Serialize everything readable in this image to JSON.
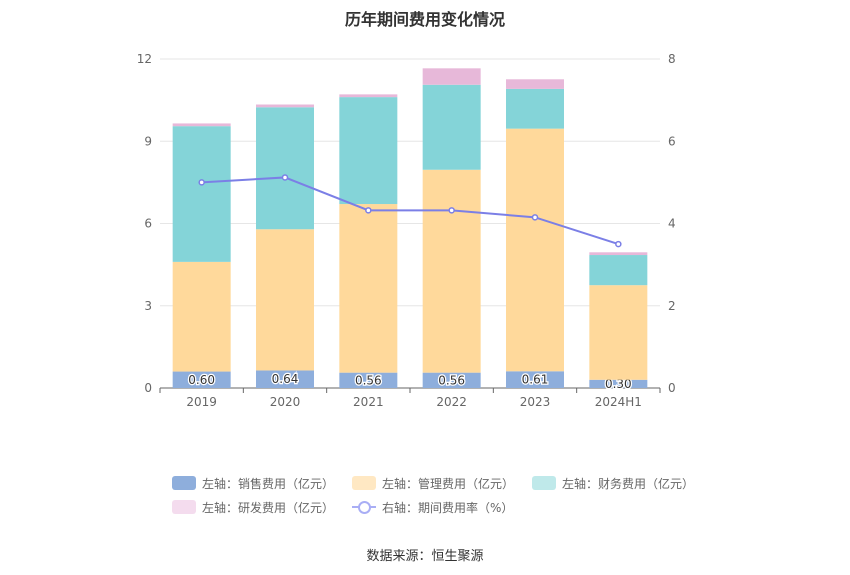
{
  "title": "历年期间费用变化情况",
  "source": "数据来源：恒生聚源",
  "chart_data": {
    "type": "bar",
    "stacked": true,
    "categories": [
      "2019",
      "2020",
      "2021",
      "2022",
      "2023",
      "2024H1"
    ],
    "y_left": {
      "min": 0,
      "max": 12,
      "ticks": [
        0,
        3,
        6,
        9,
        12
      ]
    },
    "y_right": {
      "min": 0,
      "max": 8,
      "ticks": [
        0,
        2,
        4,
        6,
        8
      ]
    },
    "series": [
      {
        "name": "左轴：销售费用（亿元）",
        "axis": "left",
        "color": "#8eaedc",
        "legend_color": "#8eaedc",
        "values": [
          0.6,
          0.64,
          0.56,
          0.56,
          0.61,
          0.3
        ],
        "labels": [
          "0.60",
          "0.64",
          "0.56",
          "0.56",
          "0.61",
          "0.30"
        ]
      },
      {
        "name": "左轴：管理费用（亿元）",
        "axis": "left",
        "color": "#ffd99b",
        "legend_color": "#ffe8c3",
        "values": [
          4.0,
          5.15,
          6.15,
          7.4,
          8.85,
          3.45
        ]
      },
      {
        "name": "左轴：财务费用（亿元）",
        "axis": "left",
        "color": "#84d4d8",
        "legend_color": "#bfe9ea",
        "values": [
          4.95,
          4.45,
          3.9,
          3.1,
          1.45,
          1.1
        ]
      },
      {
        "name": "左轴：研发费用（亿元）",
        "axis": "left",
        "color": "#e7b8d9",
        "legend_color": "#f4dcee",
        "values": [
          0.1,
          0.1,
          0.1,
          0.6,
          0.35,
          0.1
        ]
      },
      {
        "name": "右轴：期间费用率（%）",
        "axis": "right",
        "type": "line",
        "color": "#7b7fe6",
        "values": [
          5.0,
          5.12,
          4.32,
          4.32,
          4.15,
          3.5
        ]
      }
    ],
    "grid": true,
    "legend_position": "bottom"
  }
}
